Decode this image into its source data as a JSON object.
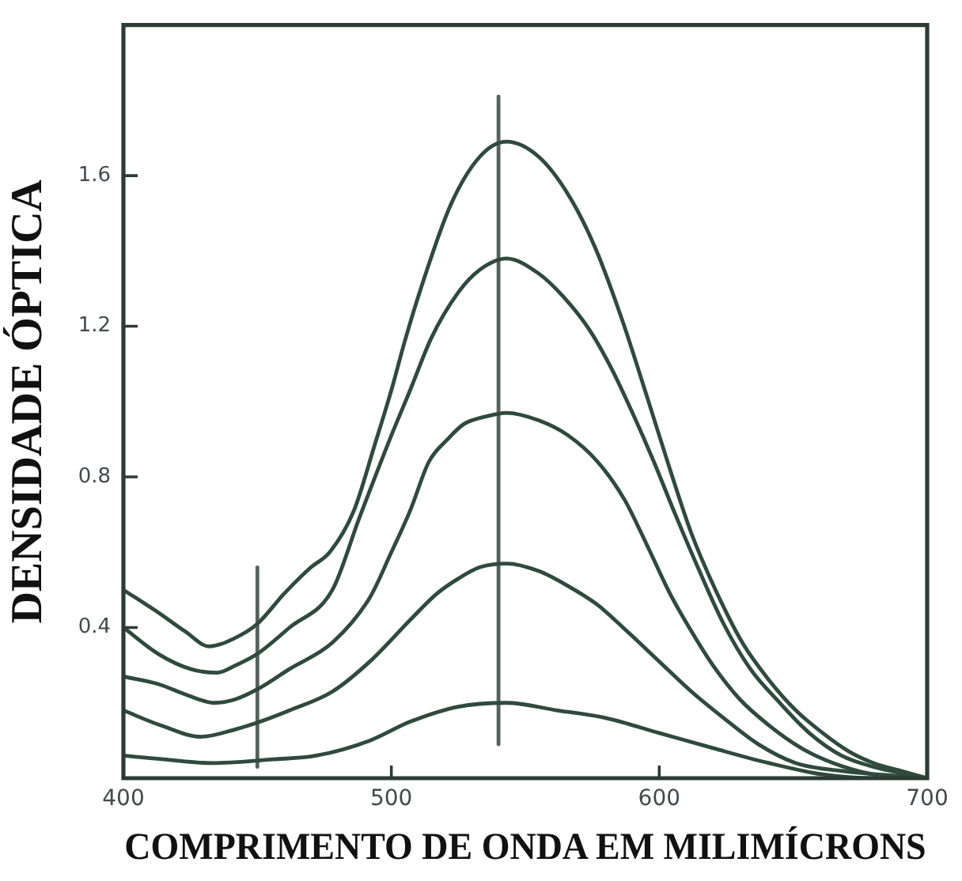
{
  "chart_data": {
    "type": "line",
    "xlabel": "COMPRIMENTO DE ONDA EM MILIMÍCRONS",
    "ylabel": "DENSIDADE ÓPTICA",
    "xlim": [
      400,
      700
    ],
    "ylim": [
      0,
      2.0
    ],
    "xticks": [
      400,
      500,
      600,
      700
    ],
    "yticks": [
      0.4,
      0.8,
      1.2,
      1.6
    ],
    "grid": false,
    "legend": false,
    "series": [
      {
        "color": "#2f4a3e",
        "x": [
          400,
          413,
          423,
          432,
          441,
          450,
          460,
          470,
          477,
          486,
          494,
          500,
          505,
          511,
          522,
          533,
          543,
          555,
          566,
          576,
          586,
          596,
          604,
          612,
          621,
          631,
          641,
          651,
          661,
          671,
          680,
          690,
          700
        ],
        "values": [
          0.5,
          0.44,
          0.39,
          0.35,
          0.37,
          0.41,
          0.49,
          0.56,
          0.6,
          0.71,
          0.89,
          1.03,
          1.16,
          1.3,
          1.52,
          1.65,
          1.69,
          1.65,
          1.55,
          1.41,
          1.22,
          1.0,
          0.82,
          0.65,
          0.5,
          0.36,
          0.26,
          0.18,
          0.12,
          0.07,
          0.04,
          0.02,
          0
        ]
      },
      {
        "color": "#2f4a3e",
        "x": [
          400,
          413,
          425,
          435,
          442,
          450,
          462,
          478,
          488,
          500,
          507,
          515,
          525,
          533,
          543,
          555,
          564,
          574,
          582,
          590,
          598,
          606,
          615,
          624,
          634,
          645,
          656,
          668,
          680,
          700
        ],
        "values": [
          0.4,
          0.33,
          0.29,
          0.28,
          0.3,
          0.33,
          0.4,
          0.5,
          0.69,
          0.91,
          1.03,
          1.17,
          1.29,
          1.35,
          1.38,
          1.34,
          1.28,
          1.19,
          1.09,
          0.97,
          0.84,
          0.7,
          0.55,
          0.41,
          0.29,
          0.2,
          0.12,
          0.06,
          0.03,
          0
        ]
      },
      {
        "color": "#2f4a3e",
        "x": [
          400,
          413,
          424,
          434,
          442,
          451,
          462,
          478,
          492,
          500,
          507,
          514,
          521,
          527,
          535,
          543,
          555,
          566,
          577,
          587,
          596,
          604,
          612,
          620,
          630,
          641,
          653,
          665,
          680,
          700
        ],
        "values": [
          0.27,
          0.25,
          0.22,
          0.2,
          0.21,
          0.24,
          0.29,
          0.36,
          0.48,
          0.6,
          0.71,
          0.84,
          0.9,
          0.94,
          0.96,
          0.97,
          0.95,
          0.91,
          0.84,
          0.74,
          0.61,
          0.49,
          0.39,
          0.3,
          0.21,
          0.14,
          0.08,
          0.04,
          0.01,
          0
        ]
      },
      {
        "color": "#2f4a3e",
        "x": [
          400,
          414,
          429,
          442,
          451,
          462,
          478,
          492,
          507,
          517,
          525,
          533,
          543,
          555,
          566,
          577,
          588,
          600,
          612,
          624,
          637,
          651,
          667,
          700
        ],
        "values": [
          0.18,
          0.14,
          0.11,
          0.13,
          0.15,
          0.18,
          0.23,
          0.31,
          0.42,
          0.49,
          0.53,
          0.56,
          0.57,
          0.55,
          0.51,
          0.46,
          0.39,
          0.31,
          0.23,
          0.16,
          0.09,
          0.04,
          0.02,
          0
        ]
      },
      {
        "color": "#2f4a3e",
        "x": [
          400,
          415,
          433,
          456,
          472,
          492,
          507,
          525,
          543,
          562,
          580,
          600,
          620,
          641,
          661,
          680,
          700
        ],
        "values": [
          0.06,
          0.05,
          0.04,
          0.05,
          0.06,
          0.1,
          0.15,
          0.19,
          0.2,
          0.18,
          0.16,
          0.12,
          0.08,
          0.04,
          0.01,
          0,
          0
        ]
      },
      {
        "color": "#56625d",
        "x": [
          450,
          450
        ],
        "values": [
          0.03,
          0.56
        ]
      },
      {
        "color": "#56625d",
        "x": [
          540,
          540
        ],
        "values": [
          0.09,
          1.81
        ]
      }
    ]
  }
}
